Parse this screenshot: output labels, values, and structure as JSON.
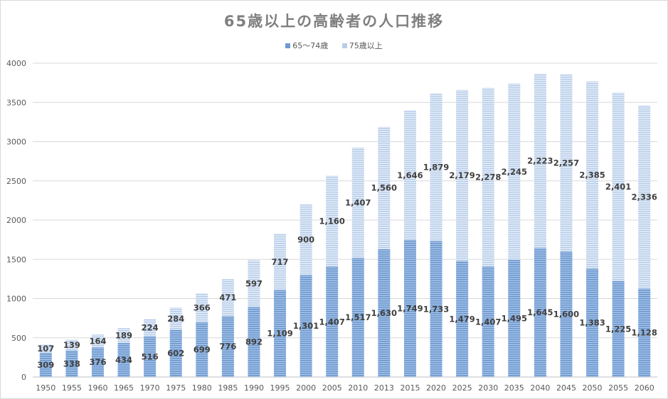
{
  "chart_data": {
    "type": "bar",
    "stacked": true,
    "title": "65歳以上の高齢者の人口推移",
    "xlabel": "",
    "ylabel": "",
    "ylim": [
      0,
      4000
    ],
    "yticks": [
      "0",
      "500",
      "1000",
      "1500",
      "2000",
      "2500",
      "3000",
      "3500",
      "4000"
    ],
    "grid": true,
    "legend_position": "top",
    "categories": [
      "1950",
      "1955",
      "1960",
      "1965",
      "1970",
      "1975",
      "1980",
      "1985",
      "1990",
      "1995",
      "2000",
      "2005",
      "2010",
      "2013",
      "2015",
      "2020",
      "2025",
      "2030",
      "2035",
      "2040",
      "2045",
      "2050",
      "2055",
      "2060"
    ],
    "series": [
      {
        "name": "65〜74歳",
        "color": "#6e9bd2",
        "values": [
          309,
          338,
          376,
          434,
          516,
          602,
          699,
          776,
          892,
          1109,
          1301,
          1407,
          1517,
          1630,
          1749,
          1733,
          1479,
          1407,
          1495,
          1645,
          1600,
          1383,
          1225,
          1128
        ],
        "labels": [
          "309",
          "338",
          "376",
          "434",
          "516",
          "602",
          "699",
          "776",
          "892",
          "1,109",
          "1,301",
          "1,407",
          "1,517",
          "1,630",
          "1,749",
          "1,733",
          "1,479",
          "1,407",
          "1,495",
          "1,645",
          "1,600",
          "1,383",
          "1,225",
          "1,128"
        ]
      },
      {
        "name": "75歳以上",
        "color": "#b7cde9",
        "values": [
          107,
          139,
          164,
          189,
          224,
          284,
          366,
          471,
          597,
          717,
          900,
          1160,
          1407,
          1560,
          1646,
          1879,
          2179,
          2278,
          2245,
          2223,
          2257,
          2385,
          2401,
          2336
        ],
        "labels": [
          "107",
          "139",
          "164",
          "189",
          "224",
          "284",
          "366",
          "471",
          "597",
          "717",
          "900",
          "1,160",
          "1,407",
          "1,560",
          "1,646",
          "1,879",
          "2,179",
          "2,278",
          "2,245",
          "2,223",
          "2,257",
          "2,385",
          "2,401",
          "2,336"
        ]
      }
    ]
  }
}
